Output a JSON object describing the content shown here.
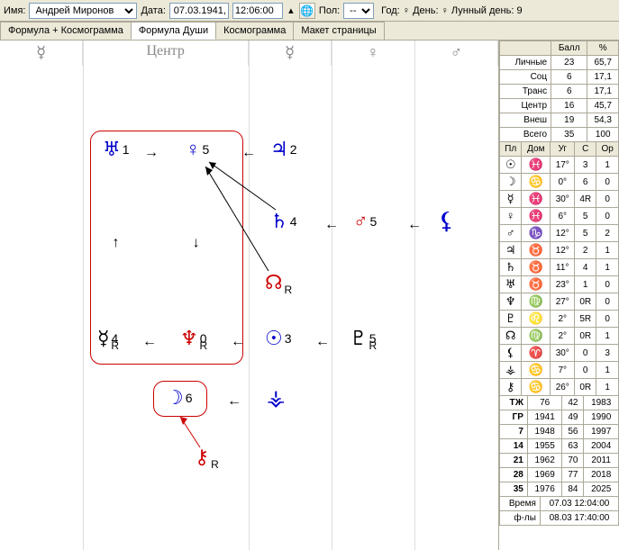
{
  "toolbar": {
    "name_label": "Имя:",
    "name_value": "Андрей Миронов",
    "date_label": "Дата:",
    "date_value": "07.03.1941,",
    "time_value": "12:06:00",
    "sex_label": "Пол:",
    "sex_value": "--",
    "info": "Год: ♀  День: ♀  Лунный день:  9"
  },
  "tabs": {
    "t1": "Формула + Космограмма",
    "t2": "Формула Души",
    "t3": "Космограмма",
    "t4": "Макет страницы"
  },
  "col_headers": {
    "c1": "☿",
    "c2": "Центр",
    "c3": "☿",
    "c4": "♀",
    "c5": "♂"
  },
  "nodes": {
    "uranus": {
      "g": "♅",
      "n": "1"
    },
    "venus": {
      "g": "♀",
      "n": "5"
    },
    "jupiter": {
      "g": "♃",
      "n": "2"
    },
    "saturn": {
      "g": "♄",
      "n": "4"
    },
    "mars": {
      "g": "♂",
      "n": "5"
    },
    "lilith": {
      "g": "⚸"
    },
    "nnode": {
      "g": "☊",
      "sub": "R"
    },
    "mercury": {
      "g": "☿",
      "n": "4",
      "sub": "R"
    },
    "neptune": {
      "g": "♆",
      "n": "0",
      "sub": "R"
    },
    "sun": {
      "g": "☉",
      "n": "3"
    },
    "pluto": {
      "g": "♇",
      "n": "5",
      "sub": "R"
    },
    "moon": {
      "g": "☽",
      "n": "6"
    },
    "selena": {
      "g": "⚶"
    },
    "chiron": {
      "g": "⚷",
      "sub": "R"
    }
  },
  "score_table": {
    "h1": "Балл",
    "h2": "%",
    "rows": [
      {
        "l": "Личные",
        "b": "23",
        "p": "65,7"
      },
      {
        "l": "Соц",
        "b": "6",
        "p": "17,1"
      },
      {
        "l": "Транс",
        "b": "6",
        "p": "17,1"
      },
      {
        "l": "Центр",
        "b": "16",
        "p": "45,7"
      },
      {
        "l": "Внеш",
        "b": "19",
        "p": "54,3"
      },
      {
        "l": "Всего",
        "b": "35",
        "p": "100"
      }
    ]
  },
  "planet_table": {
    "h": [
      "Пл",
      "Дом",
      "Уг",
      "С",
      "Ор"
    ],
    "rows": [
      [
        "☉",
        "♓",
        "17°",
        "3",
        "1"
      ],
      [
        "☽",
        "♋",
        "0°",
        "6",
        "0"
      ],
      [
        "☿",
        "♓",
        "30°",
        "4R",
        "0"
      ],
      [
        "♀",
        "♓",
        "6°",
        "5",
        "0"
      ],
      [
        "♂",
        "♑",
        "12°",
        "5",
        "2"
      ],
      [
        "♃",
        "♉",
        "12°",
        "2",
        "1"
      ],
      [
        "♄",
        "♉",
        "11°",
        "4",
        "1"
      ],
      [
        "♅",
        "♉",
        "23°",
        "1",
        "0"
      ],
      [
        "♆",
        "♍",
        "27°",
        "0R",
        "0"
      ],
      [
        "♇",
        "♌",
        "2°",
        "5R",
        "0"
      ],
      [
        "☊",
        "♍",
        "2°",
        "0R",
        "1"
      ],
      [
        "⚸",
        "♈",
        "30°",
        "0",
        "3"
      ],
      [
        "⚶",
        "♋",
        "7°",
        "0",
        "1"
      ],
      [
        "⚷",
        "♋",
        "26°",
        "0R",
        "1"
      ]
    ]
  },
  "year_table": {
    "rows": [
      [
        "ТЖ",
        "76",
        "42",
        "1983"
      ],
      [
        "ГР",
        "1941",
        "49",
        "1990"
      ],
      [
        "7",
        "1948",
        "56",
        "1997"
      ],
      [
        "14",
        "1955",
        "63",
        "2004"
      ],
      [
        "21",
        "1962",
        "70",
        "2011"
      ],
      [
        "28",
        "1969",
        "77",
        "2018"
      ],
      [
        "35",
        "1976",
        "84",
        "2025"
      ]
    ]
  },
  "footer": {
    "r1l": "Время",
    "r1v": "07.03  12:04:00",
    "r2l": "ф-лы",
    "r2v": "08.03  17:40:00"
  }
}
